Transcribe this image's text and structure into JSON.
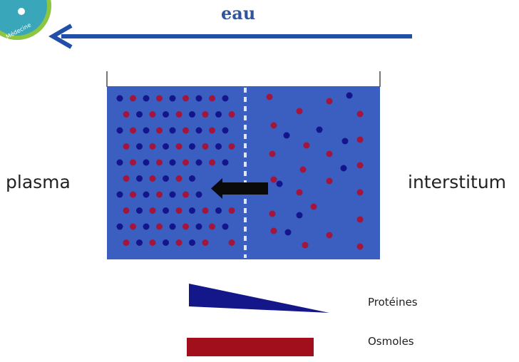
{
  "header": {
    "title": "eau"
  },
  "logo": {
    "text": "e Médecine",
    "color": "#3aa6b9",
    "ring_color": "#8dc63f"
  },
  "diagram": {
    "left_label": "plasma",
    "right_label": "interstitum",
    "container_color": "#3b5fc0",
    "membrane_color": "#dfe6f5",
    "arrow_color": "#0a0a0a",
    "water_arrow_color": "#1f4fa8",
    "particles": {
      "protein_color": "#14148c",
      "osmole_color": "#a3153a",
      "left_protein_count": 42,
      "left_osmole_count": 42,
      "right_protein_count": 8,
      "right_osmole_count": 22
    }
  },
  "legend": {
    "items": [
      {
        "label": "Protéines",
        "color": "#14178a",
        "shape": "wedge"
      },
      {
        "label": "Osmoles",
        "color": "#a10f1c",
        "shape": "bar"
      }
    ]
  }
}
